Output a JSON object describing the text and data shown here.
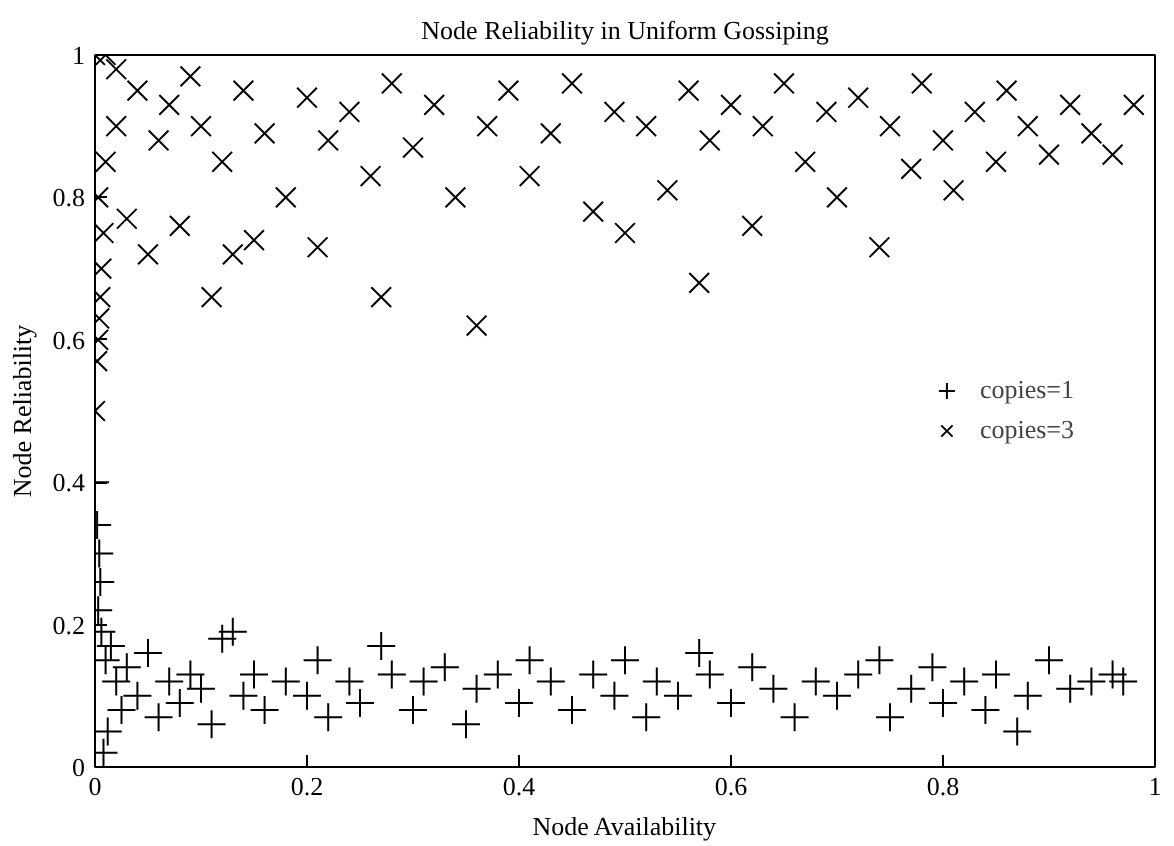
{
  "chart_data": {
    "type": "scatter",
    "title": "Node Reliability in Uniform Gossiping",
    "xlabel": "Node Availability",
    "ylabel": "Node Reliability",
    "xlim": [
      0,
      1
    ],
    "ylim": [
      0,
      1
    ],
    "xticks": [
      0,
      0.2,
      0.4,
      0.6,
      0.8,
      1
    ],
    "yticks": [
      0,
      0.2,
      0.4,
      0.6,
      0.8,
      1
    ],
    "grid": false,
    "legend": "right",
    "series": [
      {
        "name": "copies=1",
        "color": "#000000",
        "marker": "cross",
        "x": [
          0.008,
          0,
          0.002,
          0.004,
          0.005,
          0.003,
          0.006,
          0.01,
          0.012,
          0.015,
          0.02,
          0.025,
          0.03,
          0.04,
          0.05,
          0.06,
          0.07,
          0.08,
          0.09,
          0.1,
          0.11,
          0.12,
          0.13,
          0.14,
          0.15,
          0.16,
          0.18,
          0.2,
          0.21,
          0.22,
          0.24,
          0.25,
          0.27,
          0.28,
          0.3,
          0.31,
          0.33,
          0.35,
          0.36,
          0.38,
          0.4,
          0.41,
          0.43,
          0.45,
          0.47,
          0.49,
          0.5,
          0.52,
          0.53,
          0.55,
          0.57,
          0.58,
          0.6,
          0.62,
          0.64,
          0.66,
          0.68,
          0.7,
          0.72,
          0.74,
          0.75,
          0.77,
          0.79,
          0.8,
          0.82,
          0.84,
          0.85,
          0.87,
          0.88,
          0.9,
          0.92,
          0.94,
          0.96,
          0.97
        ],
        "values": [
          0.02,
          0.4,
          0.34,
          0.3,
          0.26,
          0.22,
          0.19,
          0.15,
          0.05,
          0.17,
          0.12,
          0.08,
          0.14,
          0.1,
          0.16,
          0.07,
          0.12,
          0.09,
          0.13,
          0.11,
          0.06,
          0.18,
          0.19,
          0.1,
          0.13,
          0.08,
          0.12,
          0.1,
          0.15,
          0.07,
          0.12,
          0.09,
          0.17,
          0.13,
          0.08,
          0.12,
          0.14,
          0.06,
          0.11,
          0.13,
          0.09,
          0.15,
          0.12,
          0.08,
          0.13,
          0.1,
          0.15,
          0.07,
          0.12,
          0.1,
          0.16,
          0.13,
          0.09,
          0.14,
          0.11,
          0.07,
          0.12,
          0.1,
          0.13,
          0.15,
          0.07,
          0.11,
          0.14,
          0.09,
          0.12,
          0.08,
          0.13,
          0.05,
          0.1,
          0.15,
          0.11,
          0.12,
          0.13,
          0.12
        ]
      },
      {
        "name": "copies=3",
        "color": "#000000",
        "marker": "x",
        "x": [
          0,
          0.002,
          0.003,
          0.004,
          0.005,
          0.006,
          0.008,
          0.003,
          0,
          0.01,
          0.02,
          0.01,
          0.02,
          0.03,
          0.04,
          0.05,
          0.06,
          0.07,
          0.08,
          0.09,
          0.1,
          0.11,
          0.12,
          0.13,
          0.14,
          0.15,
          0.16,
          0.18,
          0.2,
          0.21,
          0.22,
          0.24,
          0.26,
          0.27,
          0.28,
          0.3,
          0.32,
          0.34,
          0.36,
          0.37,
          0.39,
          0.41,
          0.43,
          0.45,
          0.47,
          0.49,
          0.5,
          0.52,
          0.54,
          0.56,
          0.57,
          0.58,
          0.6,
          0.62,
          0.63,
          0.65,
          0.67,
          0.69,
          0.7,
          0.72,
          0.74,
          0.75,
          0.77,
          0.78,
          0.8,
          0.81,
          0.83,
          0.85,
          0.86,
          0.88,
          0.9,
          0.92,
          0.94,
          0.96,
          0.98
        ],
        "values": [
          0.5,
          0.57,
          0.6,
          0.63,
          0.66,
          0.7,
          0.75,
          0.8,
          1,
          1,
          0.98,
          0.85,
          0.9,
          0.77,
          0.95,
          0.72,
          0.88,
          0.93,
          0.76,
          0.97,
          0.9,
          0.66,
          0.85,
          0.72,
          0.95,
          0.74,
          0.89,
          0.8,
          0.94,
          0.73,
          0.88,
          0.92,
          0.83,
          0.66,
          0.96,
          0.87,
          0.93,
          0.8,
          0.62,
          0.9,
          0.95,
          0.83,
          0.89,
          0.96,
          0.78,
          0.92,
          0.75,
          0.9,
          0.81,
          0.95,
          0.68,
          0.88,
          0.93,
          0.76,
          0.9,
          0.96,
          0.85,
          0.92,
          0.8,
          0.94,
          0.73,
          0.9,
          0.84,
          0.96,
          0.88,
          0.81,
          0.92,
          0.85,
          0.95,
          0.9,
          0.86,
          0.93,
          0.89,
          0.86,
          0.93
        ]
      }
    ]
  }
}
